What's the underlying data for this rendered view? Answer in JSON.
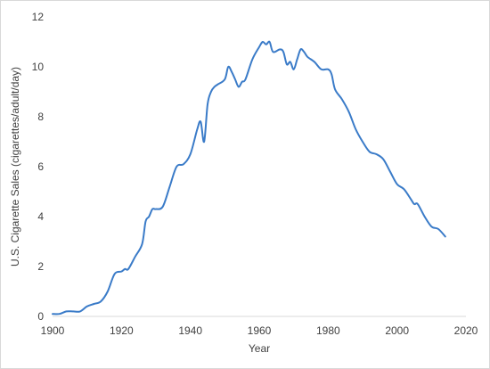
{
  "chart_data": {
    "type": "line",
    "title": "",
    "xlabel": "Year",
    "ylabel": "U.S. Cigarette Sales (cigarettes/adult/day)",
    "xlim": [
      1900,
      2020
    ],
    "ylim": [
      0,
      12
    ],
    "xticks": [
      1900,
      1920,
      1940,
      1960,
      1980,
      2000,
      2020
    ],
    "yticks": [
      0,
      2,
      4,
      6,
      8,
      10,
      12
    ],
    "grid": false,
    "legend": "none",
    "line_color": "#3a7bc8",
    "series": [
      {
        "x": [
          1900,
          1902,
          1904,
          1906,
          1908,
          1910,
          1912,
          1914,
          1916,
          1918,
          1920,
          1921,
          1922,
          1924,
          1926,
          1927,
          1928,
          1929,
          1930,
          1932,
          1934,
          1936,
          1938,
          1940,
          1942,
          1943,
          1944,
          1945,
          1946,
          1947,
          1948,
          1950,
          1951,
          1952,
          1953,
          1954,
          1955,
          1956,
          1958,
          1960,
          1961,
          1962,
          1963,
          1964,
          1966,
          1967,
          1968,
          1969,
          1970,
          1971,
          1972,
          1973,
          1974,
          1976,
          1978,
          1980,
          1981,
          1982,
          1984,
          1986,
          1988,
          1990,
          1992,
          1994,
          1996,
          1998,
          2000,
          2002,
          2004,
          2005,
          2006,
          2008,
          2010,
          2012,
          2014
        ],
        "y": [
          0.1,
          0.1,
          0.2,
          0.2,
          0.2,
          0.4,
          0.5,
          0.6,
          1.0,
          1.7,
          1.8,
          1.9,
          1.9,
          2.4,
          2.9,
          3.8,
          4.0,
          4.3,
          4.3,
          4.4,
          5.2,
          6.0,
          6.1,
          6.5,
          7.5,
          7.8,
          7.0,
          8.5,
          9.0,
          9.2,
          9.3,
          9.5,
          10.0,
          9.8,
          9.5,
          9.2,
          9.4,
          9.5,
          10.3,
          10.8,
          11.0,
          10.9,
          11.0,
          10.6,
          10.7,
          10.6,
          10.1,
          10.2,
          9.9,
          10.3,
          10.7,
          10.6,
          10.4,
          10.2,
          9.9,
          9.9,
          9.7,
          9.1,
          8.7,
          8.2,
          7.5,
          7.0,
          6.6,
          6.5,
          6.3,
          5.8,
          5.3,
          5.1,
          4.7,
          4.5,
          4.5,
          4.0,
          3.6,
          3.5,
          3.2
        ]
      }
    ]
  }
}
